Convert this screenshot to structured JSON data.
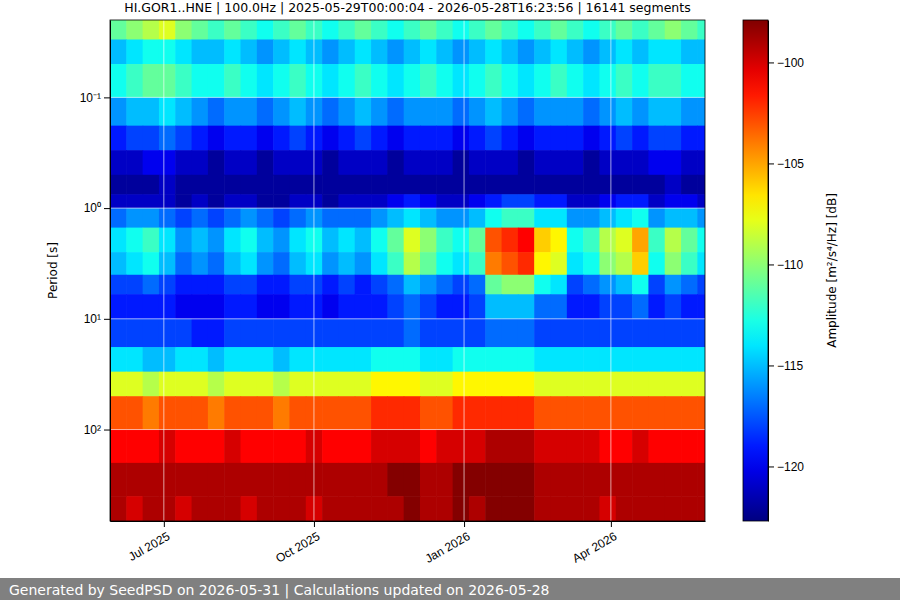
{
  "chart_data": {
    "type": "heatmap",
    "title": "HI.GOR1..HNE | 100.0Hz | 2025-05-29T00:00:04 - 2026-05-28T16:23:56 | 16141 segments",
    "y_label": "Period [s]",
    "colorbar_label": "Amplitude [m²/s⁴/Hz] [dB]",
    "annotations": [
      "Generated by SeedPSD on 2026-05-31 | Calculations updated on 2026-05-28"
    ],
    "log": "y",
    "grid": true,
    "xlim": [
      "2025-05-29T00:00:04",
      "2026-05-28T16:23:56"
    ],
    "xticks": [
      {
        "value": "2025-07-01",
        "label": "Jul 2025"
      },
      {
        "value": "2025-10-01",
        "label": "Oct 2025"
      },
      {
        "value": "2026-01-01",
        "label": "Jan 2026"
      },
      {
        "value": "2026-04-01",
        "label": "Apr 2026"
      }
    ],
    "ylim": [
      0.02,
      670
    ],
    "yticks": [
      {
        "value": 0.1,
        "label": "10⁻¹"
      },
      {
        "value": 1,
        "label": "10⁰"
      },
      {
        "value": 10,
        "label": "10¹"
      },
      {
        "value": 100,
        "label": "10²"
      }
    ],
    "clim": [
      -122.7,
      -97.9
    ],
    "cticks": [
      {
        "value": -100,
        "label": "−100"
      },
      {
        "value": -105,
        "label": "−105"
      },
      {
        "value": -110,
        "label": "−110"
      },
      {
        "value": -115,
        "label": "−115"
      },
      {
        "value": -120,
        "label": "−120"
      }
    ],
    "x_edges": [
      "2025-05-29T00:00:04",
      "2025-06-08",
      "2025-06-18",
      "2025-06-28",
      "2025-07-08",
      "2025-07-18",
      "2025-07-28",
      "2025-08-07",
      "2025-08-17",
      "2025-08-27",
      "2025-09-06",
      "2025-09-16",
      "2025-09-26",
      "2025-10-06",
      "2025-10-16",
      "2025-10-26",
      "2025-11-05",
      "2025-11-15",
      "2025-11-25",
      "2025-12-05",
      "2025-12-15",
      "2025-12-25",
      "2026-01-04",
      "2026-01-14",
      "2026-01-24",
      "2026-02-03",
      "2026-02-13",
      "2026-02-23",
      "2026-03-05",
      "2026-03-15",
      "2026-03-25",
      "2026-04-04",
      "2026-04-14",
      "2026-04-24",
      "2026-05-04",
      "2026-05-14",
      "2026-05-24",
      "2026-05-28T16:23:56"
    ],
    "y_edges": [
      0.02,
      0.03,
      0.05,
      0.1,
      0.18,
      0.3,
      0.5,
      0.75,
      1,
      1.5,
      2.5,
      4,
      6,
      10,
      18,
      30,
      50,
      100,
      200,
      400,
      670
    ],
    "values": [
      [
        -111,
        -110,
        -109,
        -108,
        -110,
        -111,
        -112,
        -111,
        -112,
        -113,
        -112,
        -111,
        -112,
        -113,
        -112,
        -111,
        -112,
        -113,
        -112,
        -111,
        -112,
        -113,
        -112,
        -111,
        -112,
        -113,
        -112,
        -111,
        -112,
        -113,
        -112,
        -111,
        -112,
        -111,
        -110,
        -111,
        -112
      ],
      [
        -115,
        -114,
        -113,
        -113,
        -114,
        -115,
        -115,
        -114,
        -115,
        -116,
        -115,
        -114,
        -115,
        -116,
        -115,
        -114,
        -115,
        -116,
        -115,
        -114,
        -115,
        -116,
        -115,
        -114,
        -115,
        -116,
        -115,
        -114,
        -115,
        -116,
        -115,
        -114,
        -115,
        -114,
        -114,
        -115,
        -115
      ],
      [
        -113,
        -112,
        -111,
        -111,
        -112,
        -113,
        -113,
        -112,
        -113,
        -114,
        -113,
        -112,
        -113,
        -114,
        -113,
        -112,
        -113,
        -114,
        -113,
        -112,
        -113,
        -114,
        -113,
        -112,
        -113,
        -114,
        -113,
        -112,
        -113,
        -114,
        -113,
        -112,
        -113,
        -112,
        -112,
        -113,
        -113
      ],
      [
        -116,
        -115,
        -115,
        -114,
        -115,
        -116,
        -117,
        -116,
        -116,
        -117,
        -116,
        -115,
        -116,
        -117,
        -116,
        -115,
        -116,
        -117,
        -116,
        -116,
        -116,
        -117,
        -116,
        -115,
        -116,
        -117,
        -116,
        -116,
        -116,
        -117,
        -116,
        -115,
        -116,
        -115,
        -115,
        -116,
        -116
      ],
      [
        -119,
        -118,
        -118,
        -117,
        -118,
        -119,
        -120,
        -119,
        -119,
        -120,
        -119,
        -118,
        -119,
        -120,
        -119,
        -118,
        -119,
        -120,
        -119,
        -119,
        -119,
        -120,
        -119,
        -118,
        -119,
        -120,
        -119,
        -119,
        -119,
        -120,
        -119,
        -118,
        -119,
        -118,
        -118,
        -119,
        -119
      ],
      [
        -121,
        -121,
        -120,
        -120,
        -121,
        -121,
        -122,
        -121,
        -121,
        -122,
        -121,
        -121,
        -121,
        -122,
        -121,
        -121,
        -121,
        -122,
        -121,
        -121,
        -121,
        -122,
        -121,
        -121,
        -121,
        -122,
        -121,
        -121,
        -121,
        -122,
        -121,
        -121,
        -121,
        -120,
        -120,
        -121,
        -121
      ],
      [
        -122,
        -122,
        -122,
        -121,
        -122,
        -122,
        -122,
        -122,
        -122,
        -122,
        -122,
        -122,
        -122,
        -122,
        -122,
        -122,
        -122,
        -122,
        -122,
        -122,
        -122,
        -122,
        -122,
        -122,
        -122,
        -122,
        -122,
        -122,
        -122,
        -122,
        -122,
        -122,
        -122,
        -122,
        -121,
        -122,
        -122
      ],
      [
        -121,
        -121,
        -121,
        -121,
        -122,
        -121,
        -122,
        -121,
        -121,
        -122,
        -122,
        -121,
        -121,
        -122,
        -121,
        -121,
        -121,
        -120,
        -119,
        -120,
        -121,
        -121,
        -120,
        -119,
        -118,
        -118,
        -119,
        -119,
        -121,
        -121,
        -120,
        -119,
        -119,
        -121,
        -120,
        -120,
        -121
      ],
      [
        -117,
        -116,
        -116,
        -117,
        -118,
        -117,
        -118,
        -117,
        -116,
        -117,
        -118,
        -117,
        -116,
        -117,
        -117,
        -117,
        -116,
        -115,
        -114,
        -115,
        -116,
        -116,
        -115,
        -113,
        -112,
        -112,
        -114,
        -114,
        -116,
        -116,
        -115,
        -114,
        -113,
        -116,
        -115,
        -115,
        -116
      ],
      [
        -114,
        -113,
        -112,
        -114,
        -116,
        -115,
        -116,
        -114,
        -113,
        -115,
        -116,
        -114,
        -113,
        -115,
        -114,
        -115,
        -113,
        -111,
        -108,
        -110,
        -112,
        -113,
        -111,
        -103,
        -102,
        -101,
        -106,
        -107,
        -113,
        -112,
        -109,
        -108,
        -105,
        -112,
        -109,
        -111,
        -113
      ],
      [
        -115,
        -114,
        -113,
        -115,
        -117,
        -116,
        -117,
        -115,
        -114,
        -116,
        -117,
        -115,
        -114,
        -116,
        -115,
        -116,
        -114,
        -112,
        -109,
        -111,
        -113,
        -114,
        -112,
        -104,
        -103,
        -102,
        -107,
        -108,
        -114,
        -113,
        -110,
        -109,
        -106,
        -113,
        -110,
        -112,
        -114
      ],
      [
        -118,
        -118,
        -117,
        -118,
        -119,
        -119,
        -119,
        -118,
        -118,
        -119,
        -119,
        -118,
        -118,
        -119,
        -118,
        -119,
        -118,
        -117,
        -115,
        -116,
        -117,
        -118,
        -117,
        -111,
        -110,
        -110,
        -113,
        -114,
        -118,
        -117,
        -116,
        -115,
        -113,
        -118,
        -116,
        -117,
        -118
      ],
      [
        -119,
        -119,
        -119,
        -119,
        -120,
        -120,
        -120,
        -119,
        -119,
        -120,
        -120,
        -119,
        -119,
        -120,
        -119,
        -119,
        -119,
        -118,
        -117,
        -118,
        -119,
        -119,
        -118,
        -115,
        -115,
        -115,
        -117,
        -117,
        -119,
        -119,
        -118,
        -118,
        -117,
        -119,
        -118,
        -119,
        -119
      ],
      [
        -118,
        -118,
        -118,
        -118,
        -118,
        -119,
        -119,
        -118,
        -118,
        -118,
        -118,
        -118,
        -118,
        -118,
        -118,
        -118,
        -118,
        -118,
        -117,
        -118,
        -118,
        -118,
        -118,
        -117,
        -117,
        -117,
        -118,
        -118,
        -118,
        -118,
        -118,
        -118,
        -118,
        -118,
        -118,
        -118,
        -118
      ],
      [
        -114,
        -114,
        -115,
        -115,
        -114,
        -114,
        -115,
        -114,
        -114,
        -114,
        -115,
        -114,
        -114,
        -114,
        -114,
        -114,
        -113,
        -113,
        -113,
        -114,
        -114,
        -113,
        -113,
        -113,
        -113,
        -113,
        -114,
        -114,
        -114,
        -114,
        -114,
        -114,
        -114,
        -114,
        -114,
        -114,
        -114
      ],
      [
        -108,
        -108,
        -109,
        -108,
        -108,
        -108,
        -109,
        -108,
        -108,
        -108,
        -109,
        -108,
        -108,
        -108,
        -108,
        -108,
        -107,
        -107,
        -107,
        -108,
        -108,
        -107,
        -107,
        -107,
        -107,
        -107,
        -108,
        -108,
        -108,
        -108,
        -108,
        -108,
        -108,
        -108,
        -108,
        -108,
        -108
      ],
      [
        -103,
        -103,
        -104,
        -103,
        -103,
        -103,
        -104,
        -103,
        -103,
        -103,
        -104,
        -103,
        -103,
        -103,
        -103,
        -103,
        -102,
        -102,
        -102,
        -103,
        -103,
        -102,
        -102,
        -102,
        -102,
        -102,
        -103,
        -103,
        -103,
        -103,
        -103,
        -103,
        -103,
        -103,
        -103,
        -103,
        -103
      ],
      [
        -101,
        -101,
        -101,
        -100,
        -101,
        -101,
        -101,
        -100,
        -101,
        -101,
        -101,
        -101,
        -100,
        -101,
        -101,
        -101,
        -100,
        -100,
        -100,
        -101,
        -100,
        -100,
        -100,
        -99,
        -99,
        -99,
        -100,
        -100,
        -100,
        -100,
        -101,
        -101,
        -100,
        -101,
        -101,
        -101,
        -101
      ],
      [
        -99,
        -99,
        -99,
        -99,
        -99,
        -99,
        -99,
        -99,
        -99,
        -99,
        -99,
        -99,
        -99,
        -99,
        -99,
        -99,
        -99,
        -98,
        -98,
        -99,
        -99,
        -98,
        -98,
        -98,
        -98,
        -98,
        -99,
        -99,
        -99,
        -99,
        -99,
        -99,
        -99,
        -99,
        -99,
        -99,
        -99
      ],
      [
        -99,
        -100,
        -99,
        -99,
        -100,
        -99,
        -99,
        -99,
        -100,
        -99,
        -99,
        -99,
        -100,
        -99,
        -99,
        -99,
        -99,
        -99,
        -98,
        -99,
        -99,
        -98,
        -99,
        -98,
        -98,
        -98,
        -99,
        -99,
        -99,
        -99,
        -100,
        -99,
        -99,
        -99,
        -99,
        -99,
        -99
      ]
    ]
  }
}
